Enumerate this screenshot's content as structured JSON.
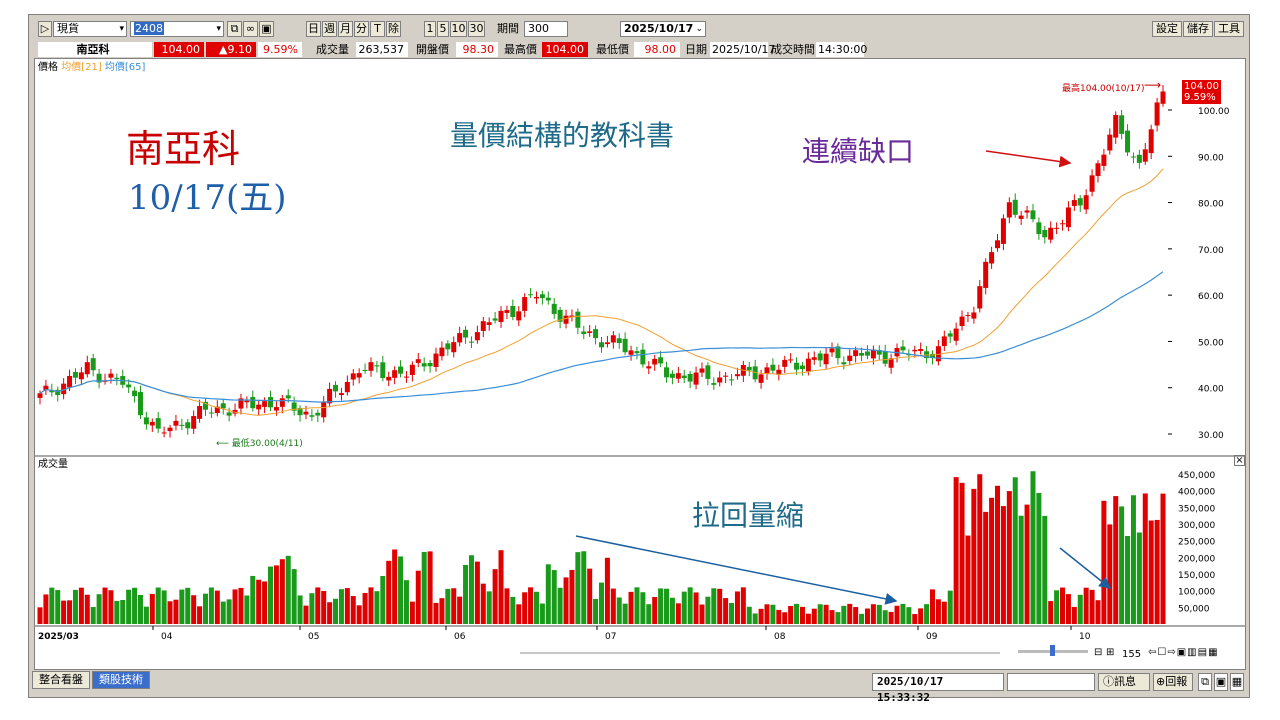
{
  "toolbar": {
    "market": "現貨",
    "stock_code": "2408",
    "periods": [
      "日",
      "週",
      "月",
      "分",
      "T",
      "除"
    ],
    "mins": [
      "1",
      "5",
      "10",
      "30"
    ],
    "period_label": "期間",
    "period_value": "300",
    "date_value": "2025/10/17",
    "right_buttons": [
      "設定",
      "儲存",
      "工具"
    ]
  },
  "quote": {
    "name": "南亞科",
    "price": "104.00",
    "change": "▲9.10",
    "change_pct": "9.59%",
    "volume_label": "成交量",
    "volume": "263,537",
    "open_label": "開盤價",
    "open": "98.30",
    "high_label": "最高價",
    "high": "104.00",
    "low_label": "最低價",
    "low": "98.00",
    "date_label": "日期",
    "date": "2025/10/17",
    "time_label": "成交時間",
    "time": "14:30:00"
  },
  "chart": {
    "legend_price": "價格",
    "legend_ma21": "均價[21]",
    "legend_ma65": "均價[65]",
    "volume_title": "成交量",
    "high_annot": "最高104.00(10/17)",
    "low_annot": "最低30.00(4/11)",
    "last_price": "104.00",
    "last_pct": "9.59%",
    "price_ticks": [
      "100.00",
      "90.00",
      "80.00",
      "70.00",
      "60.00",
      "50.00",
      "40.00",
      "30.00"
    ],
    "vol_ticks": [
      "450,000",
      "400,000",
      "350,000",
      "300,000",
      "250,000",
      "200,000",
      "150,000",
      "100,000",
      "50,000"
    ],
    "x_labels": [
      "2025/03",
      "04",
      "05",
      "06",
      "07",
      "08",
      "09",
      "10"
    ],
    "zoom_value": "155",
    "colors": {
      "up": "#e00000",
      "down": "#1a9a1a",
      "ma21": "#f0a030",
      "ma65": "#3a8ed8"
    }
  },
  "annotations": {
    "stock_title": "南亞科",
    "date_title": "10/17(五)",
    "headline": "量價結構的教科書",
    "gap_note": "連續缺口",
    "pullback_note": "拉回量縮"
  },
  "tabs": [
    "整合看盤",
    "類股技術"
  ],
  "status": {
    "datetime": "2025/10/17 15:33:32",
    "news_label": "訊息",
    "reply_label": "回報"
  }
}
